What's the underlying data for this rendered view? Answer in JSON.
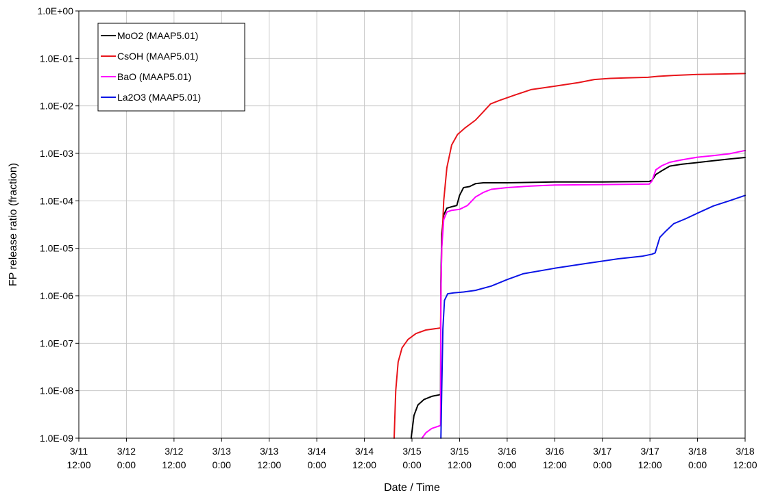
{
  "chart_data": {
    "type": "line",
    "xlabel": "Date / Time",
    "ylabel": "FP release ratio (fraction)",
    "yscale": "log",
    "ylim": [
      1e-09,
      1
    ],
    "xlim": [
      0,
      168
    ],
    "grid": true,
    "legend_position": "top-left",
    "y_ticks": [
      {
        "value": 1,
        "label": "1.0E+00"
      },
      {
        "value": 0.1,
        "label": "1.0E-01"
      },
      {
        "value": 0.01,
        "label": "1.0E-02"
      },
      {
        "value": 0.001,
        "label": "1.0E-03"
      },
      {
        "value": 0.0001,
        "label": "1.0E-04"
      },
      {
        "value": 1e-05,
        "label": "1.0E-05"
      },
      {
        "value": 1e-06,
        "label": "1.0E-06"
      },
      {
        "value": 1e-07,
        "label": "1.0E-07"
      },
      {
        "value": 1e-08,
        "label": "1.0E-08"
      },
      {
        "value": 1e-09,
        "label": "1.0E-09"
      }
    ],
    "x_ticks": [
      {
        "value": 0,
        "date": "3/11",
        "time": "12:00"
      },
      {
        "value": 12,
        "date": "3/12",
        "time": "0:00"
      },
      {
        "value": 24,
        "date": "3/12",
        "time": "12:00"
      },
      {
        "value": 36,
        "date": "3/13",
        "time": "0:00"
      },
      {
        "value": 48,
        "date": "3/13",
        "time": "12:00"
      },
      {
        "value": 60,
        "date": "3/14",
        "time": "0:00"
      },
      {
        "value": 72,
        "date": "3/14",
        "time": "12:00"
      },
      {
        "value": 84,
        "date": "3/15",
        "time": "0:00"
      },
      {
        "value": 96,
        "date": "3/15",
        "time": "12:00"
      },
      {
        "value": 108,
        "date": "3/16",
        "time": "0:00"
      },
      {
        "value": 120,
        "date": "3/16",
        "time": "12:00"
      },
      {
        "value": 132,
        "date": "3/17",
        "time": "0:00"
      },
      {
        "value": 144,
        "date": "3/17",
        "time": "12:00"
      },
      {
        "value": 156,
        "date": "3/18",
        "time": "0:00"
      },
      {
        "value": 168,
        "date": "3/18",
        "time": "12:00"
      }
    ],
    "series": [
      {
        "name": "MoO2 (MAAP5.01)",
        "color": "#000000",
        "points": [
          [
            83.8,
            1e-09
          ],
          [
            84.5,
            3e-09
          ],
          [
            85.5,
            5e-09
          ],
          [
            87,
            6.5e-09
          ],
          [
            89,
            7.6e-09
          ],
          [
            91.2,
            8.3e-09
          ],
          [
            91.3,
            2e-06
          ],
          [
            91.5,
            2e-05
          ],
          [
            92,
            5e-05
          ],
          [
            92.8,
            7e-05
          ],
          [
            94,
            7.5e-05
          ],
          [
            95.3,
            8e-05
          ],
          [
            96,
            0.00013
          ],
          [
            97,
            0.00019
          ],
          [
            98.5,
            0.0002
          ],
          [
            100,
            0.00023
          ],
          [
            102,
            0.00024
          ],
          [
            108,
            0.00024
          ],
          [
            120,
            0.00025
          ],
          [
            132,
            0.00025
          ],
          [
            143.8,
            0.000255
          ],
          [
            144.5,
            0.00027
          ],
          [
            145.5,
            0.00036
          ],
          [
            147,
            0.00043
          ],
          [
            149,
            0.00054
          ],
          [
            152,
            0.00059
          ],
          [
            156,
            0.00064
          ],
          [
            160,
            0.0007
          ],
          [
            164,
            0.00076
          ],
          [
            168,
            0.00082
          ]
        ]
      },
      {
        "name": "CsOH (MAAP5.01)",
        "color": "#e8141a",
        "points": [
          [
            79.5,
            1e-09
          ],
          [
            79.9,
            1e-08
          ],
          [
            80.5,
            4e-08
          ],
          [
            81.5,
            8e-08
          ],
          [
            83,
            1.2e-07
          ],
          [
            85,
            1.6e-07
          ],
          [
            87.5,
            1.9e-07
          ],
          [
            91.2,
            2.1e-07
          ],
          [
            91.3,
            1e-06
          ],
          [
            91.5,
            1e-05
          ],
          [
            92,
            0.0001
          ],
          [
            92.8,
            0.0005
          ],
          [
            94,
            0.0015
          ],
          [
            95.5,
            0.0025
          ],
          [
            97.5,
            0.0035
          ],
          [
            100,
            0.005
          ],
          [
            102,
            0.0075
          ],
          [
            103.8,
            0.011
          ],
          [
            106,
            0.013
          ],
          [
            110,
            0.017
          ],
          [
            114,
            0.022
          ],
          [
            120,
            0.026
          ],
          [
            126,
            0.031
          ],
          [
            130,
            0.036
          ],
          [
            134,
            0.038
          ],
          [
            138,
            0.039
          ],
          [
            143.5,
            0.04
          ],
          [
            146,
            0.042
          ],
          [
            150,
            0.044
          ],
          [
            156,
            0.046
          ],
          [
            162,
            0.047
          ],
          [
            168,
            0.048
          ]
        ]
      },
      {
        "name": "BaO (MAAP5.01)",
        "color": "#ff00ff",
        "points": [
          [
            86.5,
            1e-09
          ],
          [
            87.5,
            1.3e-09
          ],
          [
            89,
            1.6e-09
          ],
          [
            91.2,
            1.85e-09
          ],
          [
            91.3,
            1e-06
          ],
          [
            91.5,
            1e-05
          ],
          [
            92,
            4e-05
          ],
          [
            92.8,
            5.8e-05
          ],
          [
            94,
            6.3e-05
          ],
          [
            96,
            6.6e-05
          ],
          [
            98,
            8e-05
          ],
          [
            100,
            0.00012
          ],
          [
            102,
            0.00015
          ],
          [
            104,
            0.000175
          ],
          [
            108,
            0.00019
          ],
          [
            114,
            0.000205
          ],
          [
            120,
            0.000215
          ],
          [
            132,
            0.00022
          ],
          [
            143.8,
            0.000225
          ],
          [
            144.5,
            0.00026
          ],
          [
            145.5,
            0.00045
          ],
          [
            147,
            0.00055
          ],
          [
            149,
            0.00065
          ],
          [
            152,
            0.00073
          ],
          [
            156,
            0.00083
          ],
          [
            160,
            0.0009
          ],
          [
            164,
            0.00098
          ],
          [
            168,
            0.00115
          ]
        ]
      },
      {
        "name": "La2O3 (MAAP5.01)",
        "color": "#0a14e6",
        "points": [
          [
            91.3,
            1e-09
          ],
          [
            91.5,
            1e-08
          ],
          [
            91.8,
            2e-07
          ],
          [
            92.2,
            8e-07
          ],
          [
            93,
            1.1e-06
          ],
          [
            94.5,
            1.15e-06
          ],
          [
            97,
            1.2e-06
          ],
          [
            100,
            1.3e-06
          ],
          [
            104,
            1.6e-06
          ],
          [
            108,
            2.2e-06
          ],
          [
            112,
            2.9e-06
          ],
          [
            120,
            3.8e-06
          ],
          [
            128,
            4.8e-06
          ],
          [
            136,
            6e-06
          ],
          [
            142,
            6.8e-06
          ],
          [
            144.5,
            7.5e-06
          ],
          [
            145.3,
            8e-06
          ],
          [
            146.5,
            1.7e-05
          ],
          [
            148,
            2.3e-05
          ],
          [
            150,
            3.3e-05
          ],
          [
            153,
            4.2e-05
          ],
          [
            156,
            5.5e-05
          ],
          [
            160,
            7.8e-05
          ],
          [
            164,
            0.0001
          ],
          [
            168,
            0.00013
          ]
        ]
      }
    ]
  }
}
